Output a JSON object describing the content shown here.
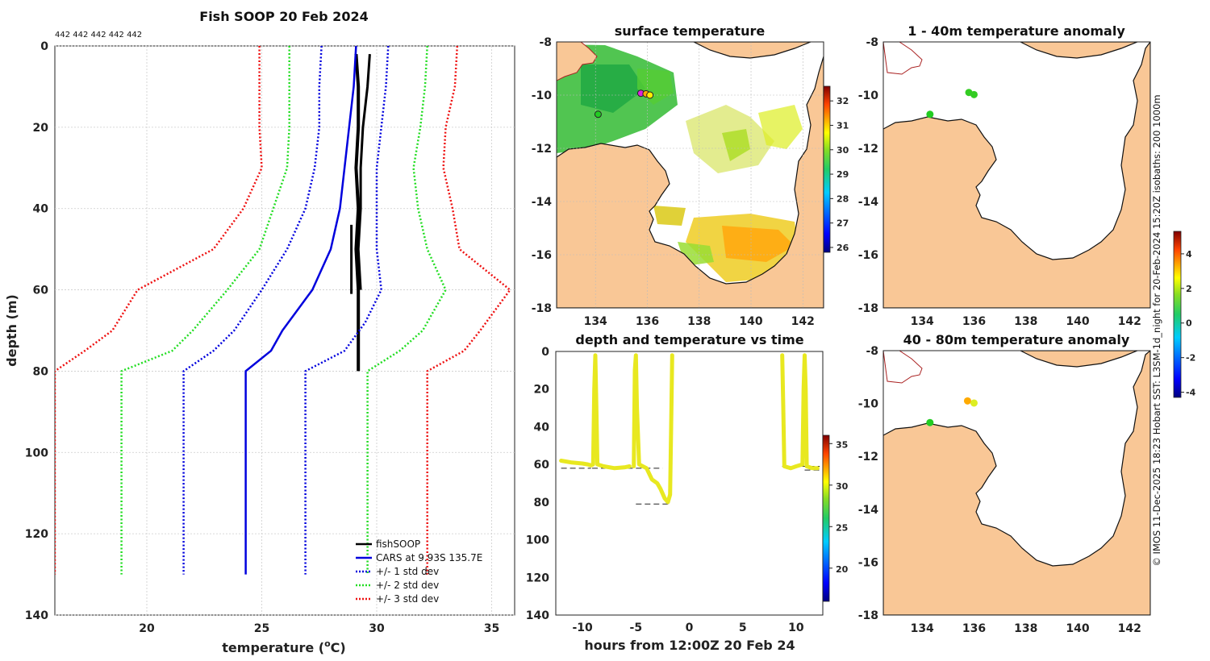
{
  "figure": {
    "credit": "© IMOS 11-Dec-2025 18:23 Hobart SST: L3SM-1d_night for 20-Feb-2024 15:20Z isobaths: 200  1000m"
  },
  "chart_data": [
    {
      "type": "line",
      "id": "profile",
      "title": "Fish SOOP 20 Feb 2024",
      "annotation": "442 442 442 442 442",
      "xlabel_pre": "temperature (",
      "xlabel_sup": "o",
      "xlabel_post": "C)",
      "ylabel": "depth (m)",
      "xlim": [
        16,
        36
      ],
      "ylim": [
        0,
        140
      ],
      "y_inverted": true,
      "grid": true,
      "xticks": [
        20,
        25,
        30,
        35
      ],
      "yticks": [
        0,
        20,
        40,
        60,
        80,
        100,
        120,
        140
      ],
      "legend_position": "bottom-right",
      "series": [
        {
          "name": "fishSOOP",
          "color": "#000000",
          "style": "solid",
          "width": 4,
          "points": [
            [
              29.1,
              2
            ],
            [
              29.2,
              10
            ],
            [
              29.2,
              20
            ],
            [
              29.1,
              30
            ],
            [
              29.2,
              40
            ],
            [
              29.1,
              50
            ],
            [
              29.2,
              60
            ],
            [
              29.2,
              70
            ],
            [
              29.2,
              80
            ]
          ]
        },
        {
          "name": "fishSOOP",
          "color": "#000000",
          "style": "solid",
          "width": 3,
          "legend": false,
          "points": [
            [
              29.7,
              2
            ],
            [
              29.6,
              10
            ],
            [
              29.4,
              20
            ],
            [
              29.3,
              30
            ],
            [
              29.3,
              40
            ],
            [
              29.2,
              50
            ],
            [
              29.3,
              60
            ]
          ]
        },
        {
          "name": "fishSOOP",
          "color": "#000000",
          "style": "solid",
          "width": 3,
          "legend": false,
          "points": [
            [
              28.9,
              44
            ],
            [
              28.9,
              50
            ],
            [
              28.9,
              55
            ],
            [
              28.9,
              61
            ]
          ]
        },
        {
          "name": "CARS at 9.93S 135.7E",
          "color": "#0000dd",
          "style": "solid",
          "width": 2.5,
          "points": [
            [
              29.1,
              0
            ],
            [
              29.0,
              10
            ],
            [
              28.8,
              20
            ],
            [
              28.6,
              30
            ],
            [
              28.4,
              40
            ],
            [
              28.0,
              50
            ],
            [
              27.2,
              60
            ],
            [
              25.9,
              70
            ],
            [
              25.4,
              75
            ],
            [
              24.3,
              80
            ],
            [
              24.3,
              130
            ]
          ]
        },
        {
          "name": "+/- 1 std dev",
          "color": "#0000dd",
          "style": "dotted",
          "width": 2.5,
          "points": [
            [
              27.6,
              0
            ],
            [
              27.5,
              10
            ],
            [
              27.5,
              20
            ],
            [
              27.3,
              30
            ],
            [
              26.9,
              40
            ],
            [
              26.1,
              50
            ],
            [
              25.0,
              60
            ],
            [
              23.8,
              70
            ],
            [
              22.9,
              75
            ],
            [
              21.6,
              80
            ],
            [
              21.6,
              130
            ]
          ]
        },
        {
          "name": "+/- 1 std dev",
          "color": "#0000dd",
          "style": "dotted",
          "width": 2.5,
          "legend": false,
          "points": [
            [
              30.5,
              0
            ],
            [
              30.4,
              10
            ],
            [
              30.2,
              20
            ],
            [
              30.0,
              30
            ],
            [
              30.0,
              40
            ],
            [
              30.0,
              50
            ],
            [
              30.2,
              60
            ],
            [
              29.5,
              68
            ],
            [
              28.6,
              75
            ],
            [
              26.9,
              80
            ],
            [
              26.9,
              130
            ]
          ]
        },
        {
          "name": "+/- 2 std dev",
          "color": "#22dd22",
          "style": "dotted",
          "width": 2.5,
          "points": [
            [
              26.2,
              0
            ],
            [
              26.2,
              10
            ],
            [
              26.2,
              20
            ],
            [
              26.1,
              30
            ],
            [
              25.5,
              40
            ],
            [
              24.9,
              50
            ],
            [
              23.5,
              60
            ],
            [
              22.0,
              70
            ],
            [
              21.1,
              75
            ],
            [
              18.9,
              80
            ],
            [
              18.9,
              130
            ]
          ]
        },
        {
          "name": "+/- 2 std dev",
          "color": "#22dd22",
          "style": "dotted",
          "width": 2.5,
          "legend": false,
          "points": [
            [
              32.2,
              0
            ],
            [
              32.1,
              10
            ],
            [
              31.9,
              20
            ],
            [
              31.6,
              30
            ],
            [
              31.8,
              40
            ],
            [
              32.2,
              50
            ],
            [
              33.0,
              60
            ],
            [
              32.0,
              70
            ],
            [
              31.0,
              75
            ],
            [
              29.6,
              80
            ],
            [
              29.6,
              130
            ]
          ]
        },
        {
          "name": "+/- 3 std dev",
          "color": "#ee1111",
          "style": "dotted",
          "width": 2.5,
          "points": [
            [
              24.9,
              0
            ],
            [
              24.9,
              10
            ],
            [
              24.9,
              20
            ],
            [
              25.0,
              30
            ],
            [
              24.2,
              40
            ],
            [
              22.9,
              50
            ],
            [
              19.6,
              60
            ],
            [
              18.5,
              70
            ],
            [
              17.3,
              75
            ],
            [
              16.0,
              80
            ],
            [
              16.0,
              130
            ]
          ]
        },
        {
          "name": "+/- 3 std dev",
          "color": "#ee1111",
          "style": "dotted",
          "width": 2.5,
          "legend": false,
          "points": [
            [
              33.5,
              0
            ],
            [
              33.4,
              10
            ],
            [
              33.0,
              20
            ],
            [
              32.9,
              30
            ],
            [
              33.3,
              40
            ],
            [
              33.6,
              50
            ],
            [
              35.8,
              60
            ],
            [
              34.5,
              70
            ],
            [
              33.8,
              75
            ],
            [
              32.2,
              80
            ],
            [
              32.2,
              130
            ]
          ]
        }
      ]
    },
    {
      "type": "heatmap",
      "id": "sst_map",
      "title": "surface temperature",
      "xlim": [
        132.5,
        142.8
      ],
      "ylim": [
        -18,
        -8
      ],
      "xticks": [
        134,
        136,
        138,
        140,
        142
      ],
      "yticks": [
        -8,
        -10,
        -12,
        -14,
        -16,
        -18
      ],
      "colorbar": {
        "min": 25.8,
        "max": 32.6,
        "ticks": [
          26,
          27,
          28,
          29,
          30,
          31,
          32
        ]
      },
      "stations": [
        {
          "lon": 135.75,
          "lat": -9.93,
          "color": "#dd22dd"
        },
        {
          "lon": 135.95,
          "lat": -9.95,
          "color": "#ffaa00"
        },
        {
          "lon": 136.1,
          "lat": -10.0,
          "color": "#ffee00"
        },
        {
          "lon": 134.1,
          "lat": -10.72,
          "color": "#22cc22"
        }
      ]
    },
    {
      "type": "scatter",
      "id": "depth_time",
      "title": "depth and temperature vs time",
      "xlabel": "hours from 12:00Z 20 Feb 24",
      "xlim": [
        -12.5,
        12.5
      ],
      "ylim": [
        0,
        140
      ],
      "y_inverted": true,
      "xticks": [
        -10,
        -5,
        0,
        5,
        10
      ],
      "yticks": [
        0,
        20,
        40,
        60,
        80,
        100,
        120,
        140
      ],
      "colorbar": {
        "min": 16,
        "max": 36,
        "ticks": [
          20,
          25,
          30,
          35
        ]
      },
      "series": [
        {
          "name": "profile 1",
          "temperature": 29,
          "points": [
            [
              -12,
              58
            ],
            [
              -11.5,
              58.5
            ],
            [
              -11,
              59
            ],
            [
              -10,
              59.5
            ],
            [
              -9.5,
              60
            ],
            [
              -9.2,
              60.5
            ],
            [
              -9,
              60
            ],
            [
              -8.9,
              20
            ],
            [
              -8.8,
              2
            ],
            [
              -8.7,
              30
            ],
            [
              -8.6,
              60
            ],
            [
              -8,
              61
            ],
            [
              -7,
              62
            ],
            [
              -6,
              61.5
            ],
            [
              -5.6,
              61
            ]
          ]
        },
        {
          "name": "profile 2",
          "temperature": 29,
          "points": [
            [
              -5.2,
              61
            ],
            [
              -5.1,
              10
            ],
            [
              -5.0,
              2
            ],
            [
              -4.9,
              30
            ],
            [
              -4.7,
              60
            ],
            [
              -4,
              62
            ],
            [
              -3.5,
              68
            ],
            [
              -3,
              70
            ],
            [
              -2.7,
              73
            ],
            [
              -2.3,
              78
            ],
            [
              -2,
              80
            ],
            [
              -1.8,
              76
            ],
            [
              -1.7,
              40
            ],
            [
              -1.6,
              2
            ]
          ]
        },
        {
          "name": "profile 3",
          "temperature": 29,
          "points": [
            [
              8.7,
              2
            ],
            [
              8.8,
              30
            ],
            [
              8.9,
              61
            ],
            [
              9.5,
              62
            ],
            [
              10,
              61
            ],
            [
              10.6,
              60
            ],
            [
              10.7,
              20
            ],
            [
              10.8,
              2
            ],
            [
              10.9,
              20
            ],
            [
              11,
              61
            ],
            [
              11.5,
              62
            ],
            [
              12,
              62
            ]
          ]
        }
      ],
      "bottom_depths": [
        {
          "x0": -12,
          "x1": -9.2,
          "depth": 62
        },
        {
          "x0": -9.1,
          "x1": -5.3,
          "depth": 62
        },
        {
          "x0": -5,
          "x1": -2.5,
          "depth": 62
        },
        {
          "x0": -5,
          "x1": -1.8,
          "depth": 81
        },
        {
          "x0": 8.7,
          "x1": 12.2,
          "depth": 61
        },
        {
          "x0": 10.8,
          "x1": 12.5,
          "depth": 63
        }
      ]
    },
    {
      "type": "heatmap",
      "id": "anom_1_40",
      "title": "1 - 40m temperature anomaly",
      "xlim": [
        132.5,
        142.8
      ],
      "ylim": [
        -18,
        -8
      ],
      "xticks": [
        134,
        136,
        138,
        140,
        142
      ],
      "yticks": [
        -8,
        -10,
        -12,
        -14,
        -16,
        -18
      ],
      "points": [
        {
          "lon": 134.3,
          "lat": -10.72,
          "color": "#22cc22"
        },
        {
          "lon": 135.8,
          "lat": -9.9,
          "color": "#33cc22"
        },
        {
          "lon": 136.0,
          "lat": -9.98,
          "color": "#33cc22"
        }
      ]
    },
    {
      "type": "heatmap",
      "id": "anom_40_80",
      "title": "40 - 80m temperature anomaly",
      "xlim": [
        132.5,
        142.8
      ],
      "ylim": [
        -18,
        -8
      ],
      "xticks": [
        134,
        136,
        138,
        140,
        142
      ],
      "yticks": [
        -8,
        -10,
        -12,
        -14,
        -16,
        -18
      ],
      "points": [
        {
          "lon": 134.3,
          "lat": -10.72,
          "color": "#22cc22"
        },
        {
          "lon": 135.75,
          "lat": -9.9,
          "color": "#ffaa00"
        },
        {
          "lon": 136.0,
          "lat": -9.98,
          "color": "#ddee22"
        }
      ]
    },
    {
      "type": "heatmap",
      "id": "anom_colorbar",
      "colorbar": {
        "min": -4.3,
        "max": 5.3,
        "ticks": [
          -4,
          -2,
          0,
          2,
          4
        ]
      }
    }
  ]
}
